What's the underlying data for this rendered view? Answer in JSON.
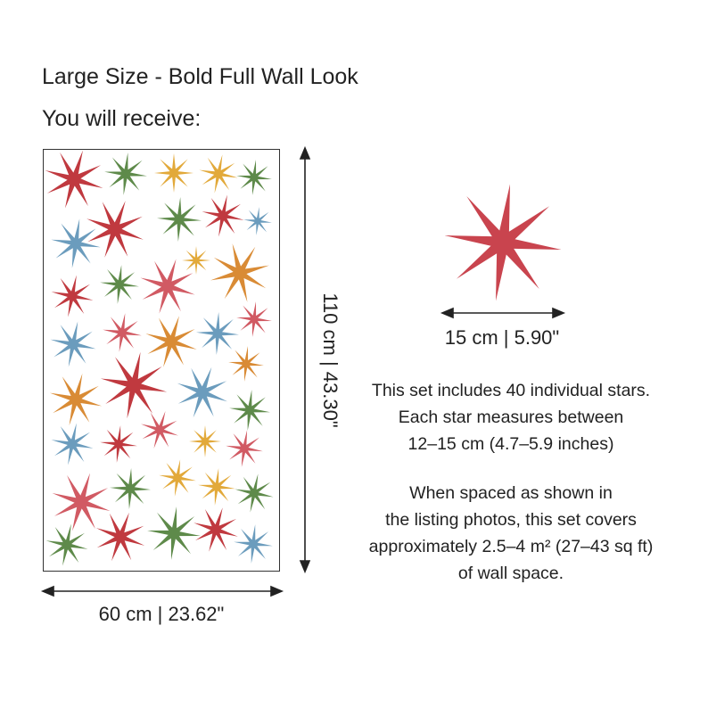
{
  "heading": {
    "title": "Large Size - Bold Full Wall Look",
    "subtitle": "You will receive:"
  },
  "sheet": {
    "width_label": "60 cm | 23.62\"",
    "height_label": "110 cm | 43.30\""
  },
  "single_star": {
    "size_label": "15 cm | 5.90\"",
    "color": "#c9444e"
  },
  "description": {
    "paragraph1": [
      "This set includes 40 individual stars.",
      "Each star measures between",
      "12–15 cm (4.7–5.9 inches)"
    ],
    "paragraph2": [
      "When spaced as shown in",
      "the listing photos, this set covers",
      "approximately 2.5–4 m² (27–43 sq ft)",
      "of wall space."
    ]
  },
  "palette": {
    "red": "#c0393f",
    "green": "#5e8a4a",
    "yellow": "#e2a93a",
    "blue": "#6b9cbd",
    "pink": "#d15a63",
    "orange": "#d98b35"
  },
  "star_count": 40,
  "star_colors": [
    "red",
    "green",
    "yellow",
    "yellow",
    "green",
    "red",
    "green",
    "red",
    "blue",
    "blue",
    "yellow",
    "orange",
    "red",
    "green",
    "pink",
    "pink",
    "blue",
    "pink",
    "orange",
    "blue",
    "orange",
    "red",
    "blue",
    "orange",
    "green",
    "blue",
    "red",
    "pink",
    "yellow",
    "pink",
    "pink",
    "green",
    "yellow",
    "yellow",
    "green",
    "green",
    "red",
    "green",
    "red",
    "blue"
  ]
}
